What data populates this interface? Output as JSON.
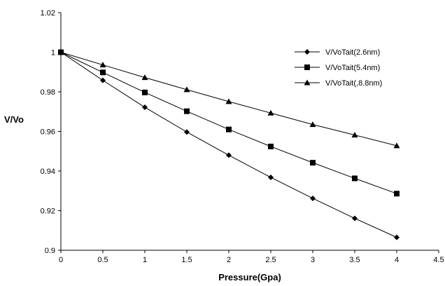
{
  "chart_data": {
    "type": "line",
    "title": "",
    "xlabel": "Pressure(Gpa)",
    "ylabel": "V/Vo",
    "xlim": [
      0,
      4.5
    ],
    "ylim": [
      0.9,
      1.02
    ],
    "x_ticks": [
      "0",
      "0.5",
      "1",
      "1.5",
      "2",
      "2.5",
      "3",
      "3.5",
      "4",
      "4.5"
    ],
    "y_ticks": [
      "0.9",
      "0.92",
      "0.94",
      "0.96",
      "0.98",
      "1",
      "1.02"
    ],
    "grid": false,
    "legend_position": "top-right",
    "x": [
      0,
      0.5,
      1,
      1.5,
      2,
      2.5,
      3,
      3.5,
      4
    ],
    "series": [
      {
        "name": "V/VoTait(2.6nm)",
        "marker": "diamond",
        "color": "#000000",
        "values": [
          1.0,
          0.9858,
          0.9722,
          0.9597,
          0.948,
          0.9368,
          0.9262,
          0.9161,
          0.9065
        ]
      },
      {
        "name": "V/VoTait(5.4nm)",
        "marker": "square",
        "color": "#000000",
        "values": [
          1.0,
          0.9898,
          0.9797,
          0.9702,
          0.961,
          0.9524,
          0.9442,
          0.9363,
          0.9286
        ]
      },
      {
        "name": "V/VoTait(,8.8nm)",
        "marker": "triangle",
        "color": "#000000",
        "values": [
          1.0,
          0.9936,
          0.9872,
          0.9811,
          0.9751,
          0.9693,
          0.9635,
          0.9582,
          0.9528
        ]
      }
    ]
  }
}
